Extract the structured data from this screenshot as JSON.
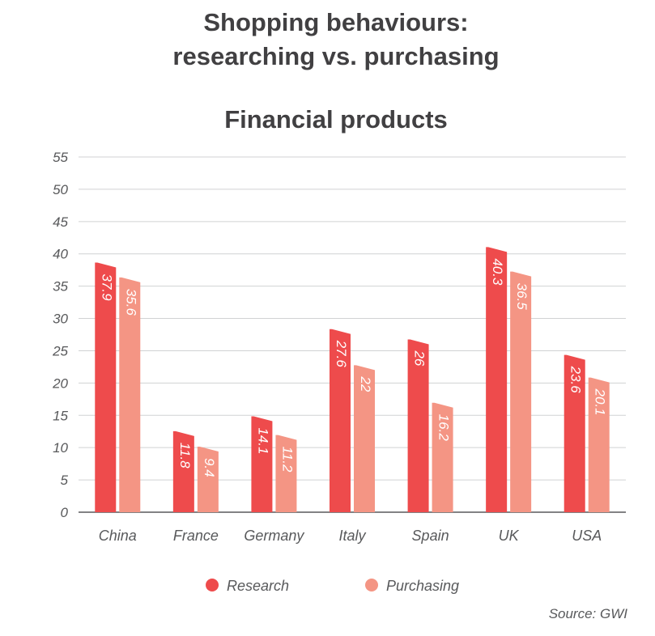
{
  "chart_data": {
    "type": "bar",
    "title_lines": [
      "Shopping behaviours:",
      "researching vs. purchasing"
    ],
    "subtitle": "Financial products",
    "categories": [
      "China",
      "France",
      "Germany",
      "Italy",
      "Spain",
      "UK",
      "USA"
    ],
    "series": [
      {
        "name": "Research",
        "values": [
          37.9,
          11.8,
          14.1,
          27.6,
          26,
          40.3,
          23.6
        ],
        "labels": [
          "37.9",
          "11.8",
          "14.1",
          "27.6",
          "26",
          "40.3",
          "23.6"
        ]
      },
      {
        "name": "Purchasing",
        "values": [
          35.6,
          9.4,
          11.2,
          22,
          16.2,
          36.5,
          20.1
        ],
        "labels": [
          "35.6",
          "9.4",
          "11.2",
          "22",
          "16.2",
          "36.5",
          "20.1"
        ]
      }
    ],
    "y_ticks": [
      "0",
      "5",
      "10",
      "15",
      "20",
      "25",
      "30",
      "35",
      "40",
      "45",
      "50",
      "55"
    ],
    "ylim": [
      0,
      55
    ],
    "grid": true,
    "legend_position": "bottom",
    "colors": {
      "research": "#ee4b4c",
      "purchasing": "#f49584",
      "grid": "#d0d2d3",
      "axis": "#58595b",
      "title": "#414042"
    },
    "source": "Source: GWI"
  }
}
